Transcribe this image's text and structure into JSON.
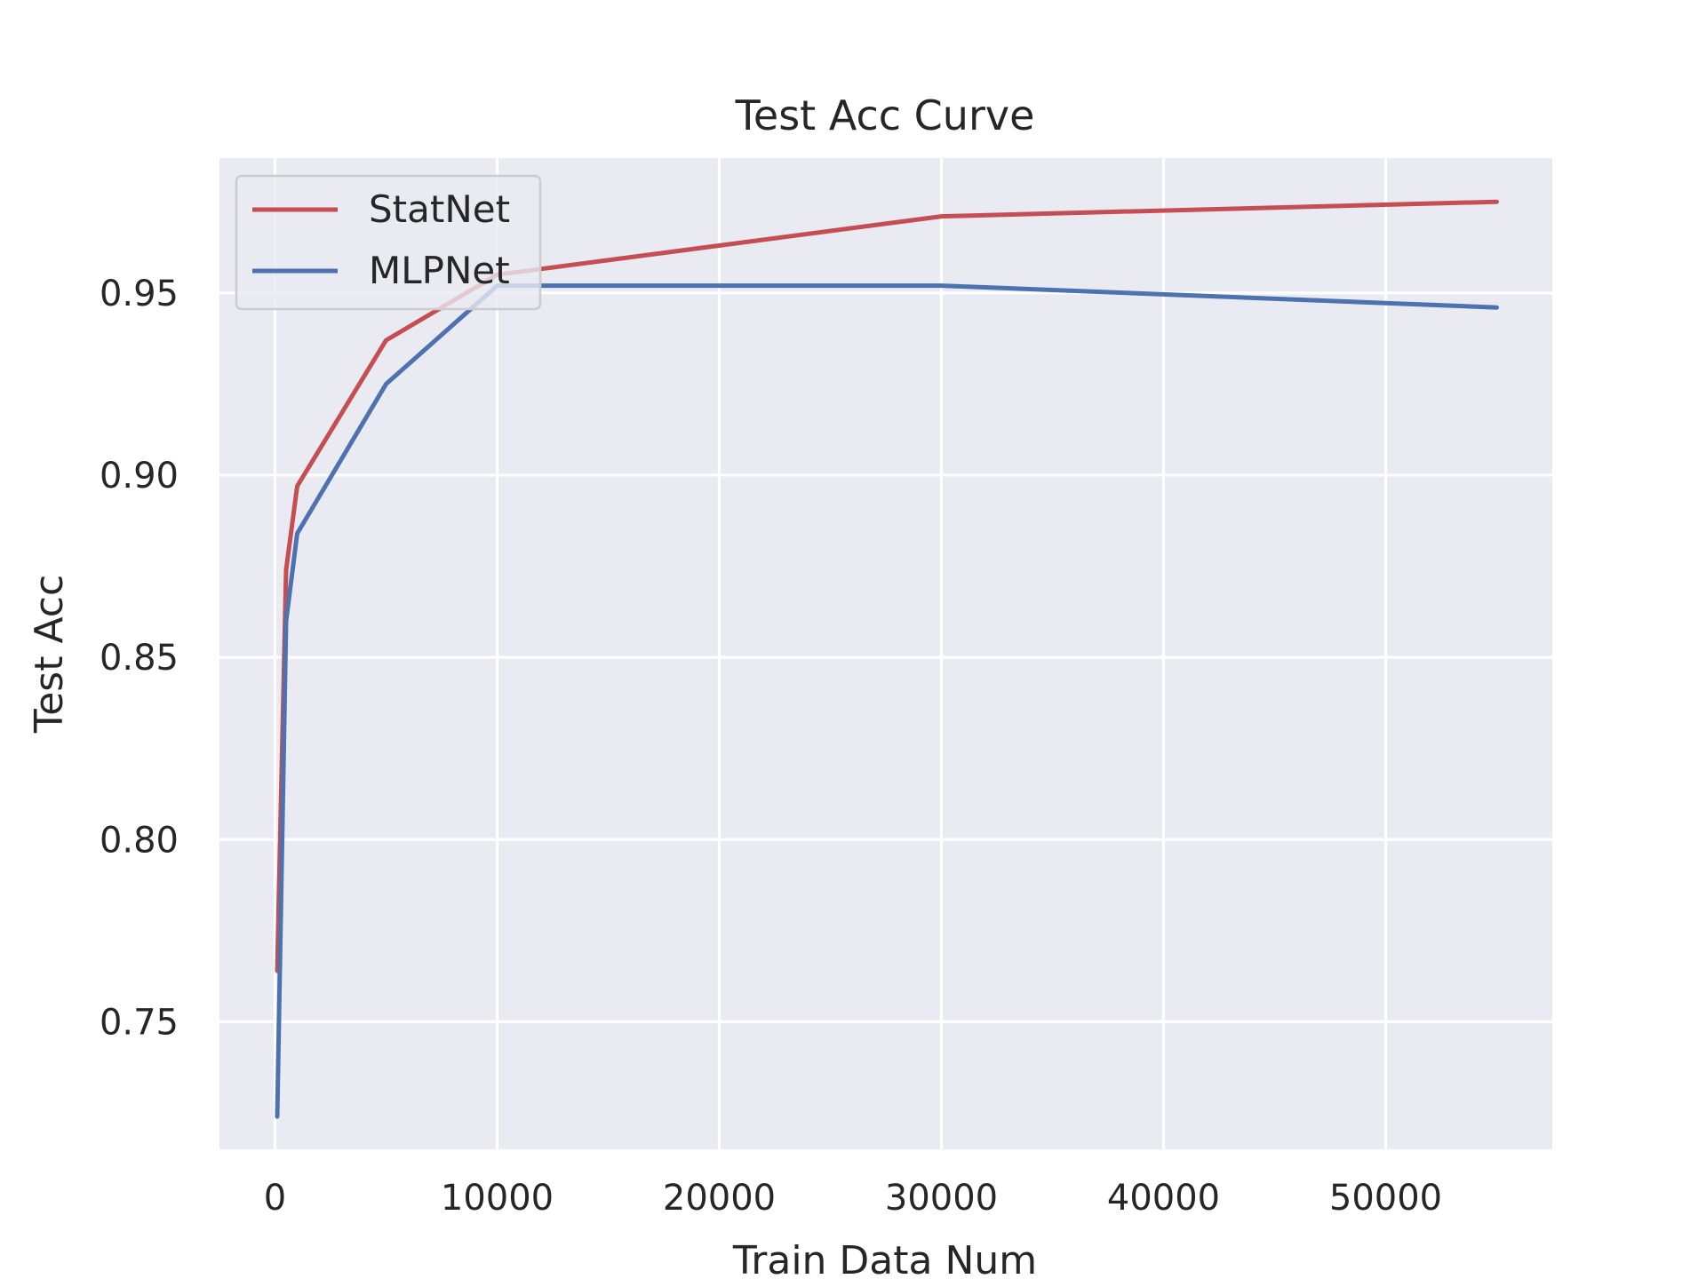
{
  "chart_data": {
    "type": "line",
    "title": "Test Acc Curve",
    "xlabel": "Train Data Num",
    "ylabel": "Test Acc",
    "xlim": [
      -2500,
      57500
    ],
    "ylim": [
      0.715,
      0.987
    ],
    "xticks": [
      0,
      10000,
      20000,
      30000,
      40000,
      50000
    ],
    "xtick_labels": [
      "0",
      "10000",
      "20000",
      "30000",
      "40000",
      "50000"
    ],
    "yticks": [
      0.75,
      0.8,
      0.85,
      0.9,
      0.95
    ],
    "ytick_labels": [
      "0.75",
      "0.80",
      "0.85",
      "0.90",
      "0.95"
    ],
    "grid": true,
    "legend_position": "top-left",
    "background": "#eaeaf2",
    "series": [
      {
        "name": "StatNet",
        "color": "#c44e52",
        "x": [
          100,
          500,
          1000,
          5000,
          10000,
          30000,
          55000
        ],
        "y": [
          0.764,
          0.874,
          0.897,
          0.937,
          0.955,
          0.971,
          0.975
        ]
      },
      {
        "name": "MLPNet",
        "color": "#4c72b0",
        "x": [
          100,
          500,
          1000,
          5000,
          10000,
          30000,
          55000
        ],
        "y": [
          0.724,
          0.86,
          0.884,
          0.925,
          0.952,
          0.952,
          0.946
        ]
      }
    ]
  }
}
